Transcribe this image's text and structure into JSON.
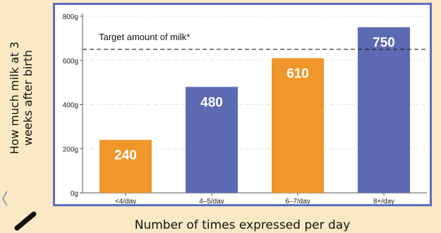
{
  "chart_data": {
    "type": "bar",
    "categories": [
      "<4/day",
      "4–5/day",
      "6–7/day",
      "8+/day"
    ],
    "values": [
      240,
      480,
      610,
      750
    ],
    "value_labels": [
      "240",
      "480",
      "610",
      "750"
    ],
    "bar_colors": [
      "#f0962a",
      "#5b6ab3",
      "#f0962a",
      "#5b6ab3"
    ],
    "ylabel_lines": [
      "How much milk at 3",
      "weeks after birth"
    ],
    "xlabel": "Number of times expressed per day",
    "ylim": [
      0,
      800
    ],
    "yticks": [
      0,
      200,
      400,
      600,
      800
    ],
    "ytick_labels": [
      "0g",
      "200g",
      "400g",
      "600g",
      "800g"
    ],
    "target": {
      "value": 650,
      "label": "Target amount of milk*"
    },
    "grid": true
  },
  "colors": {
    "background": "#fbe9c5",
    "frame_border": "#5b6cc0",
    "value_label": "#ffffff"
  }
}
